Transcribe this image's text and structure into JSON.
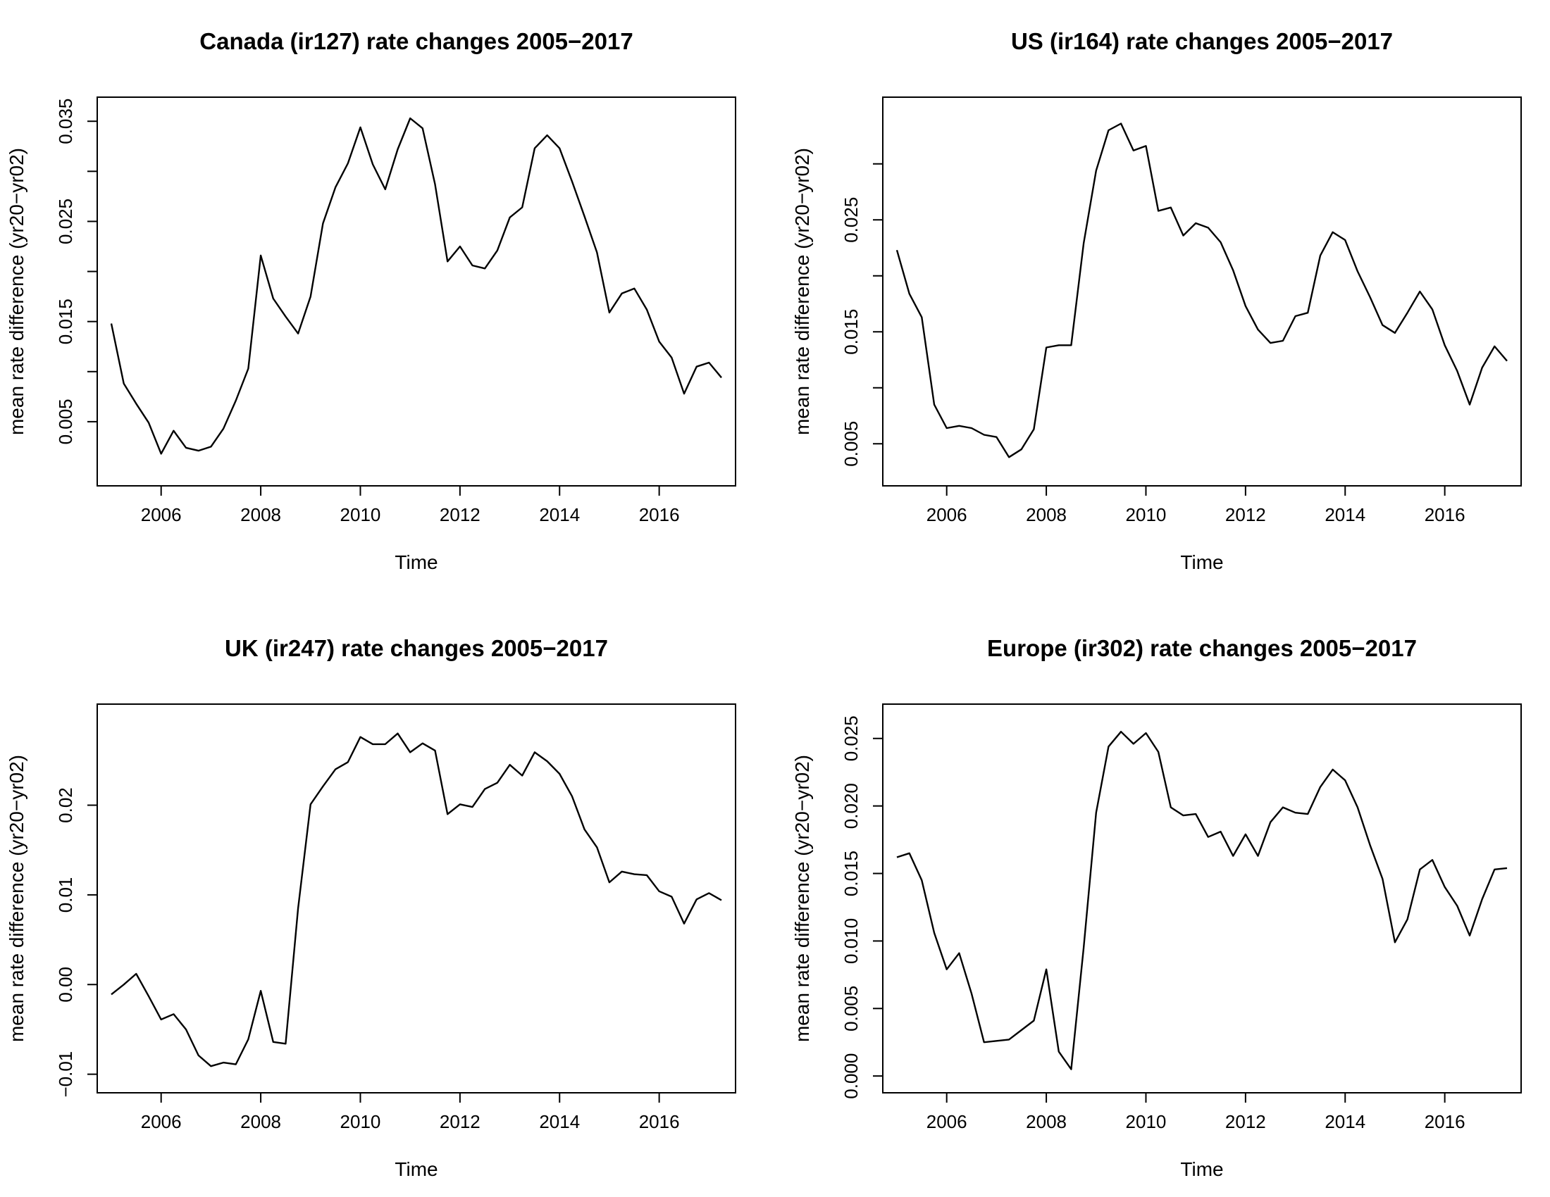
{
  "chart_data": [
    {
      "type": "line",
      "title": "Canada (ir127) rate changes 2005−2017",
      "xlabel": "Time",
      "ylabel": "mean rate difference (yr20−yr02)",
      "xlim": [
        2005,
        2017.25
      ],
      "ylim": [
        0.0,
        0.036
      ],
      "xticks": [
        2006,
        2008,
        2010,
        2012,
        2014,
        2016
      ],
      "xtick_labels": [
        "2006",
        "2008",
        "2010",
        "2012",
        "2014",
        "2016"
      ],
      "yticks": [
        0.005,
        0.01,
        0.015,
        0.02,
        0.025,
        0.03,
        0.035
      ],
      "ytick_labels": [
        "0.005",
        "",
        "0.015",
        "",
        "0.025",
        "",
        "0.035"
      ],
      "x": [
        2005.0,
        2005.25,
        2005.5,
        2005.75,
        2006.0,
        2006.25,
        2006.5,
        2006.75,
        2007.0,
        2007.25,
        2007.5,
        2007.75,
        2008.0,
        2008.25,
        2008.5,
        2008.75,
        2009.0,
        2009.25,
        2009.5,
        2009.75,
        2010.0,
        2010.25,
        2010.5,
        2010.75,
        2011.0,
        2011.25,
        2011.5,
        2011.75,
        2012.0,
        2012.25,
        2012.5,
        2012.75,
        2013.0,
        2013.25,
        2013.5,
        2013.75,
        2014.0,
        2014.25,
        2014.5,
        2014.75,
        2015.0,
        2015.25,
        2015.5,
        2015.75,
        2016.0,
        2016.25,
        2016.5,
        2016.75,
        2017.0,
        2017.25
      ],
      "values": [
        0.0148,
        0.0088,
        0.0068,
        0.0049,
        0.0018,
        0.0041,
        0.0024,
        0.0021,
        0.0025,
        0.0043,
        0.0071,
        0.0103,
        0.0216,
        0.0173,
        0.0155,
        0.0138,
        0.0175,
        0.0248,
        0.0284,
        0.0308,
        0.0344,
        0.0307,
        0.0282,
        0.0322,
        0.0353,
        0.0343,
        0.0287,
        0.021,
        0.0225,
        0.0206,
        0.0203,
        0.0221,
        0.0254,
        0.0264,
        0.0323,
        0.0336,
        0.0323,
        0.029,
        0.0255,
        0.0219,
        0.0159,
        0.0178,
        0.0183,
        0.0162,
        0.013,
        0.0114,
        0.0078,
        0.0105,
        0.0109,
        0.0094
      ]
    },
    {
      "type": "line",
      "title": "US (ir164) rate changes 2005−2017",
      "xlabel": "Time",
      "ylabel": "mean rate difference (yr20−yr02)",
      "xlim": [
        2005,
        2017.25
      ],
      "ylim": [
        0.0025,
        0.0347
      ],
      "xticks": [
        2006,
        2008,
        2010,
        2012,
        2014,
        2016
      ],
      "xtick_labels": [
        "2006",
        "2008",
        "2010",
        "2012",
        "2014",
        "2016"
      ],
      "yticks": [
        0.005,
        0.01,
        0.015,
        0.02,
        0.025,
        0.03
      ],
      "ytick_labels": [
        "0.005",
        "",
        "0.015",
        "",
        "0.025",
        ""
      ],
      "x": [
        2005.0,
        2005.25,
        2005.5,
        2005.75,
        2006.0,
        2006.25,
        2006.5,
        2006.75,
        2007.0,
        2007.25,
        2007.5,
        2007.75,
        2008.0,
        2008.25,
        2008.5,
        2008.75,
        2009.0,
        2009.25,
        2009.5,
        2009.75,
        2010.0,
        2010.25,
        2010.5,
        2010.75,
        2011.0,
        2011.25,
        2011.5,
        2011.75,
        2012.0,
        2012.25,
        2012.5,
        2012.75,
        2013.0,
        2013.25,
        2013.5,
        2013.75,
        2014.0,
        2014.25,
        2014.5,
        2014.75,
        2015.0,
        2015.25,
        2015.5,
        2015.75,
        2016.0,
        2016.25,
        2016.5,
        2016.75,
        2017.0,
        2017.25
      ],
      "values": [
        0.0223,
        0.0184,
        0.0163,
        0.0085,
        0.0064,
        0.0066,
        0.0064,
        0.0058,
        0.0056,
        0.0038,
        0.0045,
        0.0063,
        0.0136,
        0.0138,
        0.0138,
        0.0229,
        0.0294,
        0.033,
        0.0336,
        0.0312,
        0.0316,
        0.0258,
        0.0261,
        0.0236,
        0.0247,
        0.0243,
        0.023,
        0.0205,
        0.0173,
        0.0152,
        0.014,
        0.0142,
        0.0164,
        0.0167,
        0.0218,
        0.0239,
        0.0232,
        0.0204,
        0.0181,
        0.0156,
        0.0149,
        0.0167,
        0.0186,
        0.017,
        0.0138,
        0.0115,
        0.0085,
        0.0118,
        0.0137,
        0.0124
      ]
    },
    {
      "type": "line",
      "title": "UK (ir247) rate changes 2005−2017",
      "xlabel": "Time",
      "ylabel": "mean rate difference (yr20−yr02)",
      "xlim": [
        2005,
        2017.25
      ],
      "ylim": [
        -0.0105,
        0.0297
      ],
      "xticks": [
        2006,
        2008,
        2010,
        2012,
        2014,
        2016
      ],
      "xtick_labels": [
        "2006",
        "2008",
        "2010",
        "2012",
        "2014",
        "2016"
      ],
      "yticks": [
        -0.01,
        0.0,
        0.01,
        0.02
      ],
      "ytick_labels": [
        "−0.01",
        "0.00",
        "0.01",
        "0.02"
      ],
      "x": [
        2005.0,
        2005.25,
        2005.5,
        2005.75,
        2006.0,
        2006.25,
        2006.5,
        2006.75,
        2007.0,
        2007.25,
        2007.5,
        2007.75,
        2008.0,
        2008.25,
        2008.5,
        2008.75,
        2009.0,
        2009.25,
        2009.5,
        2009.75,
        2010.0,
        2010.25,
        2010.5,
        2010.75,
        2011.0,
        2011.25,
        2011.5,
        2011.75,
        2012.0,
        2012.25,
        2012.5,
        2012.75,
        2013.0,
        2013.25,
        2013.5,
        2013.75,
        2014.0,
        2014.25,
        2014.5,
        2014.75,
        2015.0,
        2015.25,
        2015.5,
        2015.75,
        2016.0,
        2016.25,
        2016.5,
        2016.75,
        2017.0,
        2017.25
      ],
      "values": [
        -0.0011,
        0.0,
        0.0012,
        -0.0013,
        -0.0039,
        -0.0033,
        -0.005,
        -0.0079,
        -0.0091,
        -0.0087,
        -0.0089,
        -0.0061,
        -0.0007,
        -0.0064,
        -0.0066,
        0.0085,
        0.0201,
        0.0221,
        0.024,
        0.0248,
        0.0276,
        0.0268,
        0.0268,
        0.028,
        0.0259,
        0.0269,
        0.0261,
        0.019,
        0.0201,
        0.0198,
        0.0218,
        0.0225,
        0.0245,
        0.0233,
        0.0259,
        0.0249,
        0.0235,
        0.021,
        0.0173,
        0.0153,
        0.0114,
        0.0126,
        0.0123,
        0.0122,
        0.0104,
        0.0098,
        0.0068,
        0.0095,
        0.0102,
        0.0094
      ]
    },
    {
      "type": "line",
      "title": "Europe (ir302) rate changes 2005−2017",
      "xlabel": "Time",
      "ylabel": "mean rate difference (yr20−yr02)",
      "xlim": [
        2005,
        2017.25
      ],
      "ylim": [
        -0.0002,
        0.0265
      ],
      "xticks": [
        2006,
        2008,
        2010,
        2012,
        2014,
        2016
      ],
      "xtick_labels": [
        "2006",
        "2008",
        "2010",
        "2012",
        "2014",
        "2016"
      ],
      "yticks": [
        0.0,
        0.005,
        0.01,
        0.015,
        0.02,
        0.025
      ],
      "ytick_labels": [
        "0.000",
        "0.005",
        "0.010",
        "0.015",
        "0.020",
        "0.025"
      ],
      "x": [
        2005.0,
        2005.25,
        2005.5,
        2005.75,
        2006.0,
        2006.25,
        2006.5,
        2006.75,
        2007.0,
        2007.25,
        2007.5,
        2007.75,
        2008.0,
        2008.25,
        2008.5,
        2008.75,
        2009.0,
        2009.25,
        2009.5,
        2009.75,
        2010.0,
        2010.25,
        2010.5,
        2010.75,
        2011.0,
        2011.25,
        2011.5,
        2011.75,
        2012.0,
        2012.25,
        2012.5,
        2012.75,
        2013.0,
        2013.25,
        2013.5,
        2013.75,
        2014.0,
        2014.25,
        2014.5,
        2014.75,
        2015.0,
        2015.25,
        2015.5,
        2015.75,
        2016.0,
        2016.25,
        2016.5,
        2016.75,
        2017.0,
        2017.25
      ],
      "values": [
        0.0162,
        0.0165,
        0.0145,
        0.0106,
        0.0079,
        0.0091,
        0.0061,
        0.0025,
        0.0026,
        0.0027,
        0.0034,
        0.0041,
        0.0079,
        0.0018,
        0.0005,
        0.0095,
        0.0195,
        0.0244,
        0.0255,
        0.0246,
        0.0254,
        0.024,
        0.0199,
        0.0193,
        0.0194,
        0.0177,
        0.0181,
        0.0163,
        0.0179,
        0.0163,
        0.0188,
        0.0199,
        0.0195,
        0.0194,
        0.0214,
        0.0227,
        0.0219,
        0.0199,
        0.0171,
        0.0146,
        0.0099,
        0.0116,
        0.0153,
        0.016,
        0.014,
        0.0126,
        0.0104,
        0.0131,
        0.0153,
        0.0154
      ]
    }
  ]
}
